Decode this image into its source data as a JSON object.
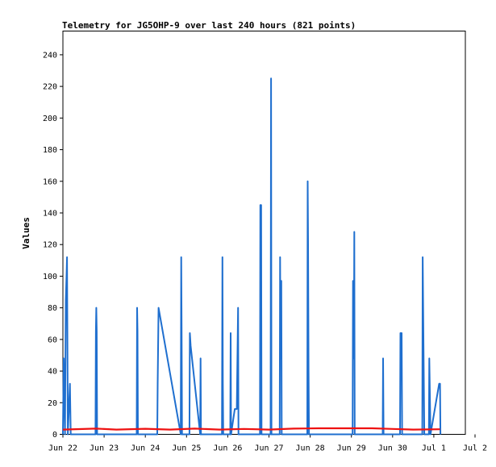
{
  "chart_data": {
    "type": "line",
    "title": "Telemetry for JG5OHP-9 over last 240 hours (821 points)",
    "xlabel": "",
    "ylabel": "Values",
    "ylim": [
      0,
      255
    ],
    "xlim": [
      0,
      10
    ],
    "grid": false,
    "legend": "none",
    "x_tick_labels": [
      "Jun 22",
      "Jun 23",
      "Jun 24",
      "Jun 25",
      "Jun 26",
      "Jun 27",
      "Jun 28",
      "Jun 29",
      "Jun 30",
      "Jul 1",
      "Jul 2"
    ],
    "y_ticks": [
      0,
      20,
      40,
      60,
      80,
      100,
      120,
      140,
      160,
      180,
      200,
      220,
      240
    ],
    "series": [
      {
        "color": "#1f6fcf",
        "points": [
          [
            0.0,
            0
          ],
          [
            0.02,
            48
          ],
          [
            0.05,
            0
          ],
          [
            0.07,
            85
          ],
          [
            0.09,
            102
          ],
          [
            0.1,
            112
          ],
          [
            0.12,
            0
          ],
          [
            0.17,
            32
          ],
          [
            0.19,
            0
          ],
          [
            0.79,
            0
          ],
          [
            0.8,
            65
          ],
          [
            0.81,
            80
          ],
          [
            0.82,
            65
          ],
          [
            0.83,
            0
          ],
          [
            1.79,
            0
          ],
          [
            1.8,
            80
          ],
          [
            1.81,
            65
          ],
          [
            1.82,
            0
          ],
          [
            2.29,
            0
          ],
          [
            2.3,
            32
          ],
          [
            2.32,
            80
          ],
          [
            2.86,
            0
          ],
          [
            2.87,
            112
          ],
          [
            2.88,
            65
          ],
          [
            2.89,
            0
          ],
          [
            3.07,
            0
          ],
          [
            3.08,
            64
          ],
          [
            3.1,
            56
          ],
          [
            3.33,
            0
          ],
          [
            3.34,
            48
          ],
          [
            3.35,
            0
          ],
          [
            3.86,
            0
          ],
          [
            3.87,
            112
          ],
          [
            3.88,
            32
          ],
          [
            3.89,
            0
          ],
          [
            4.06,
            0
          ],
          [
            4.07,
            64
          ],
          [
            4.08,
            0
          ],
          [
            4.17,
            16
          ],
          [
            4.22,
            16
          ],
          [
            4.23,
            40
          ],
          [
            4.25,
            80
          ],
          [
            4.26,
            0
          ],
          [
            4.78,
            0
          ],
          [
            4.79,
            145
          ],
          [
            4.81,
            145
          ],
          [
            4.82,
            0
          ],
          [
            5.04,
            0
          ],
          [
            5.05,
            225
          ],
          [
            5.06,
            0
          ],
          [
            5.26,
            0
          ],
          [
            5.27,
            112
          ],
          [
            5.28,
            48
          ],
          [
            5.3,
            97
          ],
          [
            5.31,
            0
          ],
          [
            5.93,
            0
          ],
          [
            5.94,
            160
          ],
          [
            5.95,
            120
          ],
          [
            5.96,
            40
          ],
          [
            5.97,
            0
          ],
          [
            7.03,
            0
          ],
          [
            7.04,
            97
          ],
          [
            7.06,
            48
          ],
          [
            7.07,
            128
          ],
          [
            7.08,
            0
          ],
          [
            7.76,
            0
          ],
          [
            7.77,
            48
          ],
          [
            7.78,
            0
          ],
          [
            8.18,
            0
          ],
          [
            8.19,
            64
          ],
          [
            8.22,
            64
          ],
          [
            8.23,
            0
          ],
          [
            8.72,
            0
          ],
          [
            8.73,
            112
          ],
          [
            8.75,
            56
          ],
          [
            8.77,
            0
          ],
          [
            8.88,
            0
          ],
          [
            8.89,
            48
          ],
          [
            8.92,
            0
          ],
          [
            9.13,
            32
          ],
          [
            9.15,
            32
          ],
          [
            9.16,
            0
          ]
        ]
      },
      {
        "color": "#ee1111",
        "points": [
          [
            0.0,
            3
          ],
          [
            0.8,
            3.6
          ],
          [
            1.3,
            3.0
          ],
          [
            2.0,
            3.5
          ],
          [
            2.6,
            3.0
          ],
          [
            3.2,
            3.6
          ],
          [
            3.8,
            3.0
          ],
          [
            4.4,
            3.4
          ],
          [
            5.0,
            3.0
          ],
          [
            5.6,
            3.6
          ],
          [
            6.2,
            3.8
          ],
          [
            6.8,
            3.8
          ],
          [
            7.5,
            3.8
          ],
          [
            8.0,
            3.4
          ],
          [
            8.5,
            3.0
          ],
          [
            9.15,
            3.2
          ]
        ]
      }
    ]
  }
}
